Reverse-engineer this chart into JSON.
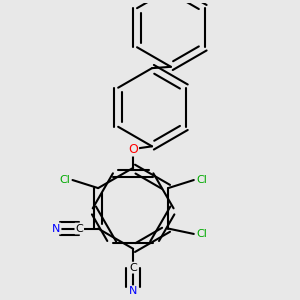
{
  "background_color": "#e8e8e8",
  "bond_color": "#000000",
  "atom_colors": {
    "C": "#000000",
    "N": "#0000ff",
    "O": "#ff0000",
    "Cl": "#00aa00"
  },
  "line_width": 1.5,
  "dbo": 0.055,
  "figsize": [
    3.0,
    3.0
  ],
  "dpi": 100
}
